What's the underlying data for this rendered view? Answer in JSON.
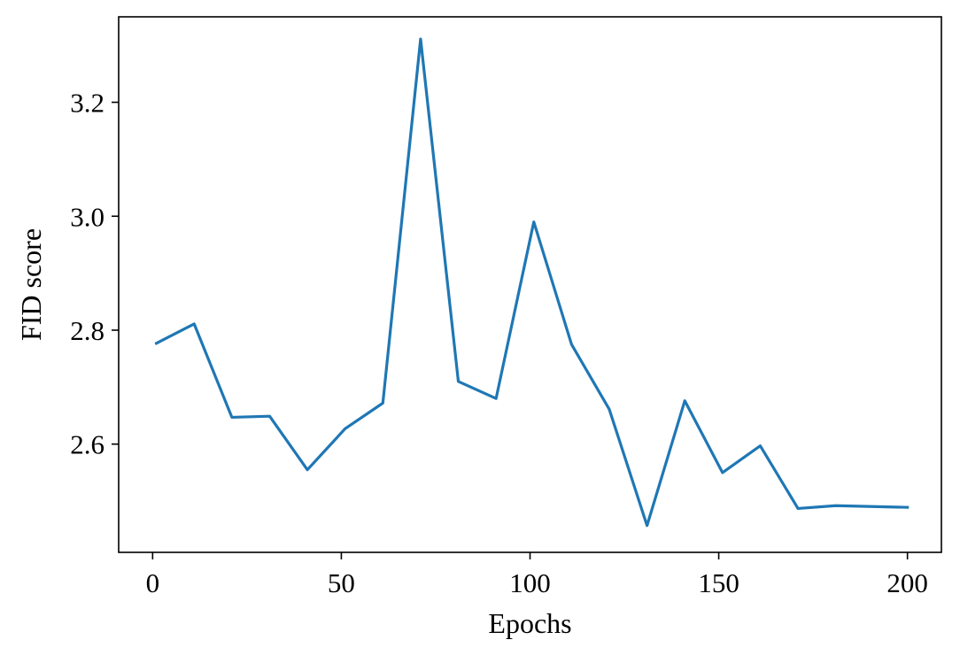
{
  "chart_data": {
    "type": "line",
    "title": "",
    "xlabel": "Epochs",
    "ylabel": "FID score",
    "xlim": [
      -9,
      209
    ],
    "ylim": [
      2.41,
      3.35
    ],
    "x_ticks": [
      0,
      50,
      100,
      150,
      200
    ],
    "x_tick_labels": [
      "0",
      "50",
      "100",
      "150",
      "200"
    ],
    "y_ticks": [
      2.6,
      2.8,
      3.0,
      3.2
    ],
    "y_tick_labels": [
      "2.6",
      "2.8",
      "3.0",
      "3.2"
    ],
    "grid": false,
    "legend": "none",
    "series": [
      {
        "color": "#1f77b4",
        "x": [
          1,
          11,
          21,
          31,
          41,
          51,
          61,
          71,
          81,
          91,
          101,
          111,
          121,
          131,
          141,
          151,
          161,
          171,
          181,
          200
        ],
        "y": [
          2.777,
          2.811,
          2.647,
          2.649,
          2.555,
          2.627,
          2.672,
          3.311,
          2.71,
          2.68,
          2.99,
          2.775,
          2.661,
          2.457,
          2.676,
          2.55,
          2.597,
          2.487,
          2.492,
          2.489
        ]
      }
    ]
  }
}
